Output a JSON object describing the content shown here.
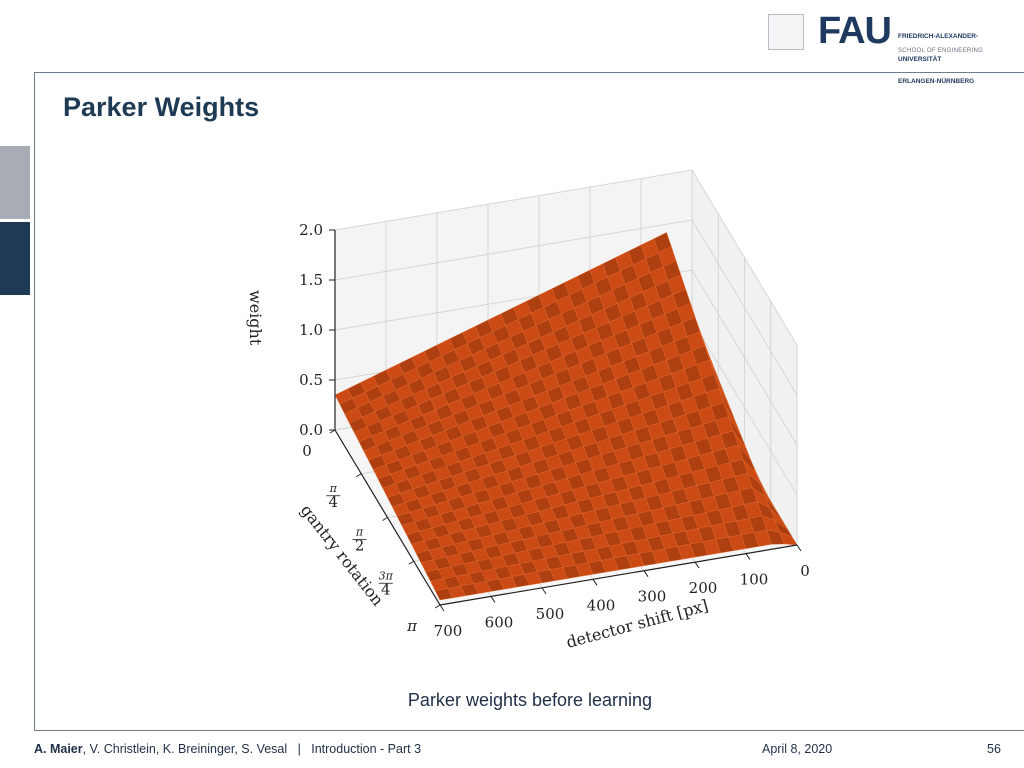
{
  "header": {
    "title": "Parker Weights",
    "logo_text": "FAU",
    "university_lines": [
      "FRIEDRICH-ALEXANDER-",
      "UNIVERSITÄT",
      "ERLANGEN-NÜRNBERG"
    ],
    "school": "SCHOOL OF ENGINEERING"
  },
  "caption": "Parker weights before learning",
  "footer": {
    "first_author": "A. Maier",
    "other_authors": ", V. Christlein, K. Breininger, S. Vesal",
    "separator": "|",
    "lecture": "Introduction - Part 3",
    "date": "April 8, 2020",
    "page": "56"
  },
  "colors": {
    "surface": "#cc4a14",
    "surface_mesh": "#e56a2e",
    "accent": "#1f3a55"
  },
  "chart_data": {
    "type": "surface3d",
    "title": "",
    "xlabel": "detector shift [px]",
    "ylabel": "gantry rotation",
    "zlabel": "weight",
    "xlim": [
      0,
      700
    ],
    "ylim_rad": [
      0,
      3.14159
    ],
    "zlim": [
      0,
      2.0
    ],
    "x_ticks": [
      "0",
      "100",
      "200",
      "300",
      "400",
      "500",
      "600",
      "700"
    ],
    "x_tick_values": [
      0,
      100,
      200,
      300,
      400,
      500,
      600,
      700
    ],
    "y_ticks": [
      {
        "num": "",
        "den": "",
        "label": "0",
        "value": 0
      },
      {
        "num": "π",
        "den": "4",
        "label": "",
        "value": 0.7854
      },
      {
        "num": "π",
        "den": "2",
        "label": "",
        "value": 1.5708
      },
      {
        "num": "3π",
        "den": "4",
        "label": "",
        "value": 2.3562
      },
      {
        "num": "",
        "den": "",
        "label": "π",
        "value": 3.14159
      }
    ],
    "z_ticks": [
      "0.0",
      "0.5",
      "1.0",
      "1.5",
      "2.0"
    ],
    "z_tick_values": [
      0,
      0.5,
      1.0,
      1.5,
      2.0
    ],
    "grid": true
  }
}
